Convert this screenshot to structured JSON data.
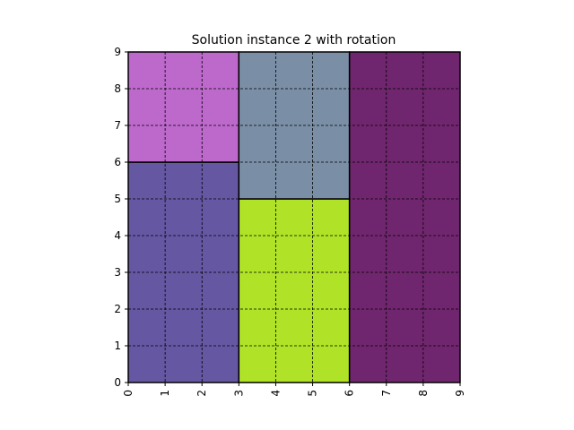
{
  "chart_data": {
    "type": "rectangle-packing",
    "title": "Solution instance 2 with rotation",
    "xlim": [
      0,
      9
    ],
    "ylim": [
      0,
      9
    ],
    "xticks": [
      "0",
      "1",
      "2",
      "3",
      "4",
      "5",
      "6",
      "7",
      "8",
      "9"
    ],
    "yticks": [
      "0",
      "1",
      "2",
      "3",
      "4",
      "5",
      "6",
      "7",
      "8",
      "9"
    ],
    "grid": true,
    "grid_style": "dashed",
    "x_tick_rotation": 90,
    "rectangles": [
      {
        "x": 0,
        "y": 0,
        "width": 3,
        "height": 6,
        "color": "#6657a3"
      },
      {
        "x": 0,
        "y": 6,
        "width": 3,
        "height": 3,
        "color": "#bd69cc"
      },
      {
        "x": 3,
        "y": 0,
        "width": 3,
        "height": 5,
        "color": "#b0e327"
      },
      {
        "x": 3,
        "y": 5,
        "width": 3,
        "height": 4,
        "color": "#7a8fa6"
      },
      {
        "x": 6,
        "y": 0,
        "width": 3,
        "height": 9,
        "color": "#70266e"
      }
    ]
  }
}
